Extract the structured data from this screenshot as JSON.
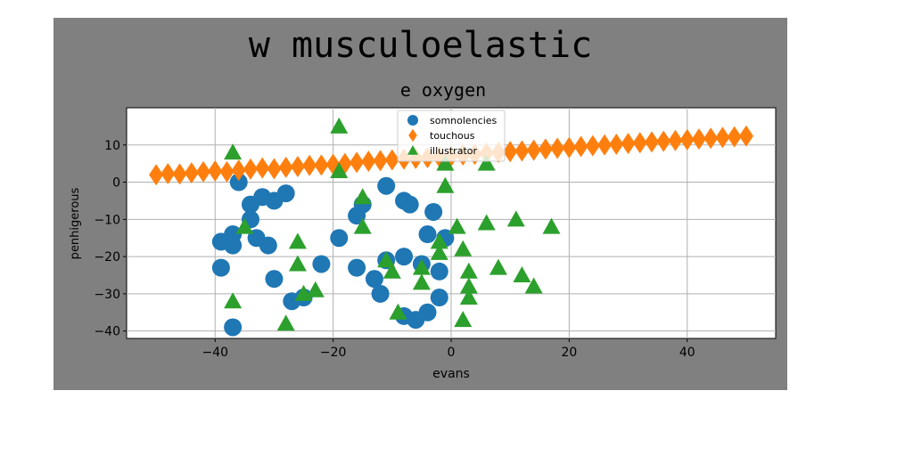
{
  "chart_data": {
    "type": "scatter",
    "suptitle": "w musculoelastic",
    "title": "e oxygen",
    "xlabel": "evans",
    "ylabel": "penhigerous",
    "xlim": [
      -55,
      55
    ],
    "ylim": [
      -42,
      20
    ],
    "xticks": [
      -40,
      -20,
      0,
      20,
      40
    ],
    "yticks": [
      -40,
      -30,
      -20,
      -10,
      0,
      10
    ],
    "grid": true,
    "legend_position": "top-center",
    "series": [
      {
        "name": "somnolencies",
        "marker": "circle",
        "color": "#1f77b4",
        "points": [
          [
            -36,
            0
          ],
          [
            -34,
            -6
          ],
          [
            -32,
            -4
          ],
          [
            -30,
            -5
          ],
          [
            -28,
            -3
          ],
          [
            -34,
            -10
          ],
          [
            -37,
            -14
          ],
          [
            -39,
            -16
          ],
          [
            -37,
            -17
          ],
          [
            -33,
            -15
          ],
          [
            -31,
            -17
          ],
          [
            -39,
            -23
          ],
          [
            -30,
            -26
          ],
          [
            -27,
            -32
          ],
          [
            -25,
            -31
          ],
          [
            -22,
            -22
          ],
          [
            -19,
            -15
          ],
          [
            -16,
            -9
          ],
          [
            -15,
            -6
          ],
          [
            -16,
            -23
          ],
          [
            -13,
            -26
          ],
          [
            -12,
            -30
          ],
          [
            -11,
            -21
          ],
          [
            -11,
            -1
          ],
          [
            -8,
            -5
          ],
          [
            -7,
            -6
          ],
          [
            -8,
            -20
          ],
          [
            -8,
            -36
          ],
          [
            -6,
            -37
          ],
          [
            -5,
            -22
          ],
          [
            -4,
            -14
          ],
          [
            -4,
            -35
          ],
          [
            -3,
            -8
          ],
          [
            -2,
            -24
          ],
          [
            -2,
            -31
          ],
          [
            -1,
            -15
          ],
          [
            -37,
            -39
          ]
        ]
      },
      {
        "name": "touchous",
        "marker": "diamond",
        "color": "#ff7f0e",
        "points": [
          [
            -50,
            2.0
          ],
          [
            -48,
            2.3
          ],
          [
            -46,
            2.2
          ],
          [
            -44,
            2.5
          ],
          [
            -42,
            2.8
          ],
          [
            -40,
            3.0
          ],
          [
            -38,
            2.8
          ],
          [
            -36,
            3.2
          ],
          [
            -34,
            3.5
          ],
          [
            -32,
            3.8
          ],
          [
            -30,
            3.6
          ],
          [
            -28,
            4.0
          ],
          [
            -26,
            4.2
          ],
          [
            -24,
            4.5
          ],
          [
            -22,
            4.6
          ],
          [
            -20,
            4.8
          ],
          [
            -18,
            5.0
          ],
          [
            -16,
            5.3
          ],
          [
            -14,
            5.6
          ],
          [
            -12,
            5.8
          ],
          [
            -10,
            6.0
          ],
          [
            -8,
            6.2
          ],
          [
            -6,
            6.4
          ],
          [
            -4,
            6.6
          ],
          [
            -2,
            6.8
          ],
          [
            0,
            7.0
          ],
          [
            2,
            7.3
          ],
          [
            4,
            7.5
          ],
          [
            6,
            7.8
          ],
          [
            8,
            8.0
          ],
          [
            10,
            8.2
          ],
          [
            12,
            8.4
          ],
          [
            14,
            8.6
          ],
          [
            16,
            8.9
          ],
          [
            18,
            9.1
          ],
          [
            20,
            9.3
          ],
          [
            22,
            9.6
          ],
          [
            24,
            9.8
          ],
          [
            26,
            10.0
          ],
          [
            28,
            10.2
          ],
          [
            30,
            10.4
          ],
          [
            32,
            10.6
          ],
          [
            34,
            10.8
          ],
          [
            36,
            11.0
          ],
          [
            38,
            11.2
          ],
          [
            40,
            11.4
          ],
          [
            42,
            11.6
          ],
          [
            44,
            11.8
          ],
          [
            46,
            12.0
          ],
          [
            48,
            12.2
          ],
          [
            50,
            12.4
          ]
        ]
      },
      {
        "name": "illustrator",
        "marker": "triangle",
        "color": "#2ca02c",
        "points": [
          [
            -37,
            8
          ],
          [
            -19,
            15
          ],
          [
            -19,
            3
          ],
          [
            -35,
            -12
          ],
          [
            -26,
            -16
          ],
          [
            -26,
            -22
          ],
          [
            -25,
            -30
          ],
          [
            -23,
            -29
          ],
          [
            -28,
            -38
          ],
          [
            -37,
            -32
          ],
          [
            -15,
            -4
          ],
          [
            -15,
            -12
          ],
          [
            -11,
            -21
          ],
          [
            -10,
            -24
          ],
          [
            -9,
            -35
          ],
          [
            -5,
            -23
          ],
          [
            -5,
            -27
          ],
          [
            -2,
            -16
          ],
          [
            -2,
            -19
          ],
          [
            -1,
            -1
          ],
          [
            -1,
            5
          ],
          [
            1,
            -12
          ],
          [
            2,
            -18
          ],
          [
            3,
            -24
          ],
          [
            3,
            -28
          ],
          [
            3,
            -31
          ],
          [
            2,
            -37
          ],
          [
            6,
            -11
          ],
          [
            6,
            5
          ],
          [
            8,
            -23
          ],
          [
            11,
            -10
          ],
          [
            12,
            -25
          ],
          [
            14,
            -28
          ],
          [
            17,
            -12
          ]
        ]
      }
    ]
  }
}
